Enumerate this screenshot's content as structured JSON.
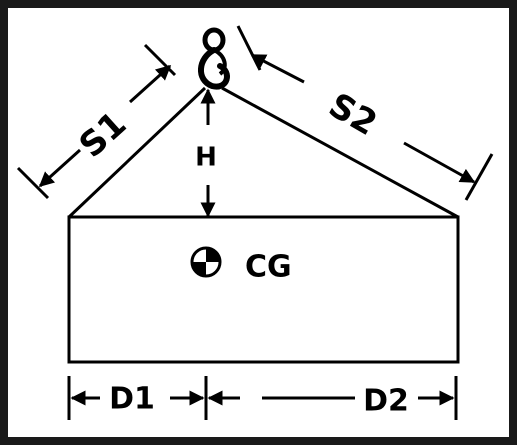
{
  "colors": {
    "frame": "#1a1a1a",
    "ink": "#000000",
    "paper": "#ffffff"
  },
  "icons": {
    "hook": "hoist-hook-icon",
    "cg": "center-of-gravity-icon"
  },
  "labels": {
    "s1": "S1",
    "s2": "S2",
    "h": "H",
    "cg": "CG",
    "d1": "D1",
    "d2": "D2"
  }
}
